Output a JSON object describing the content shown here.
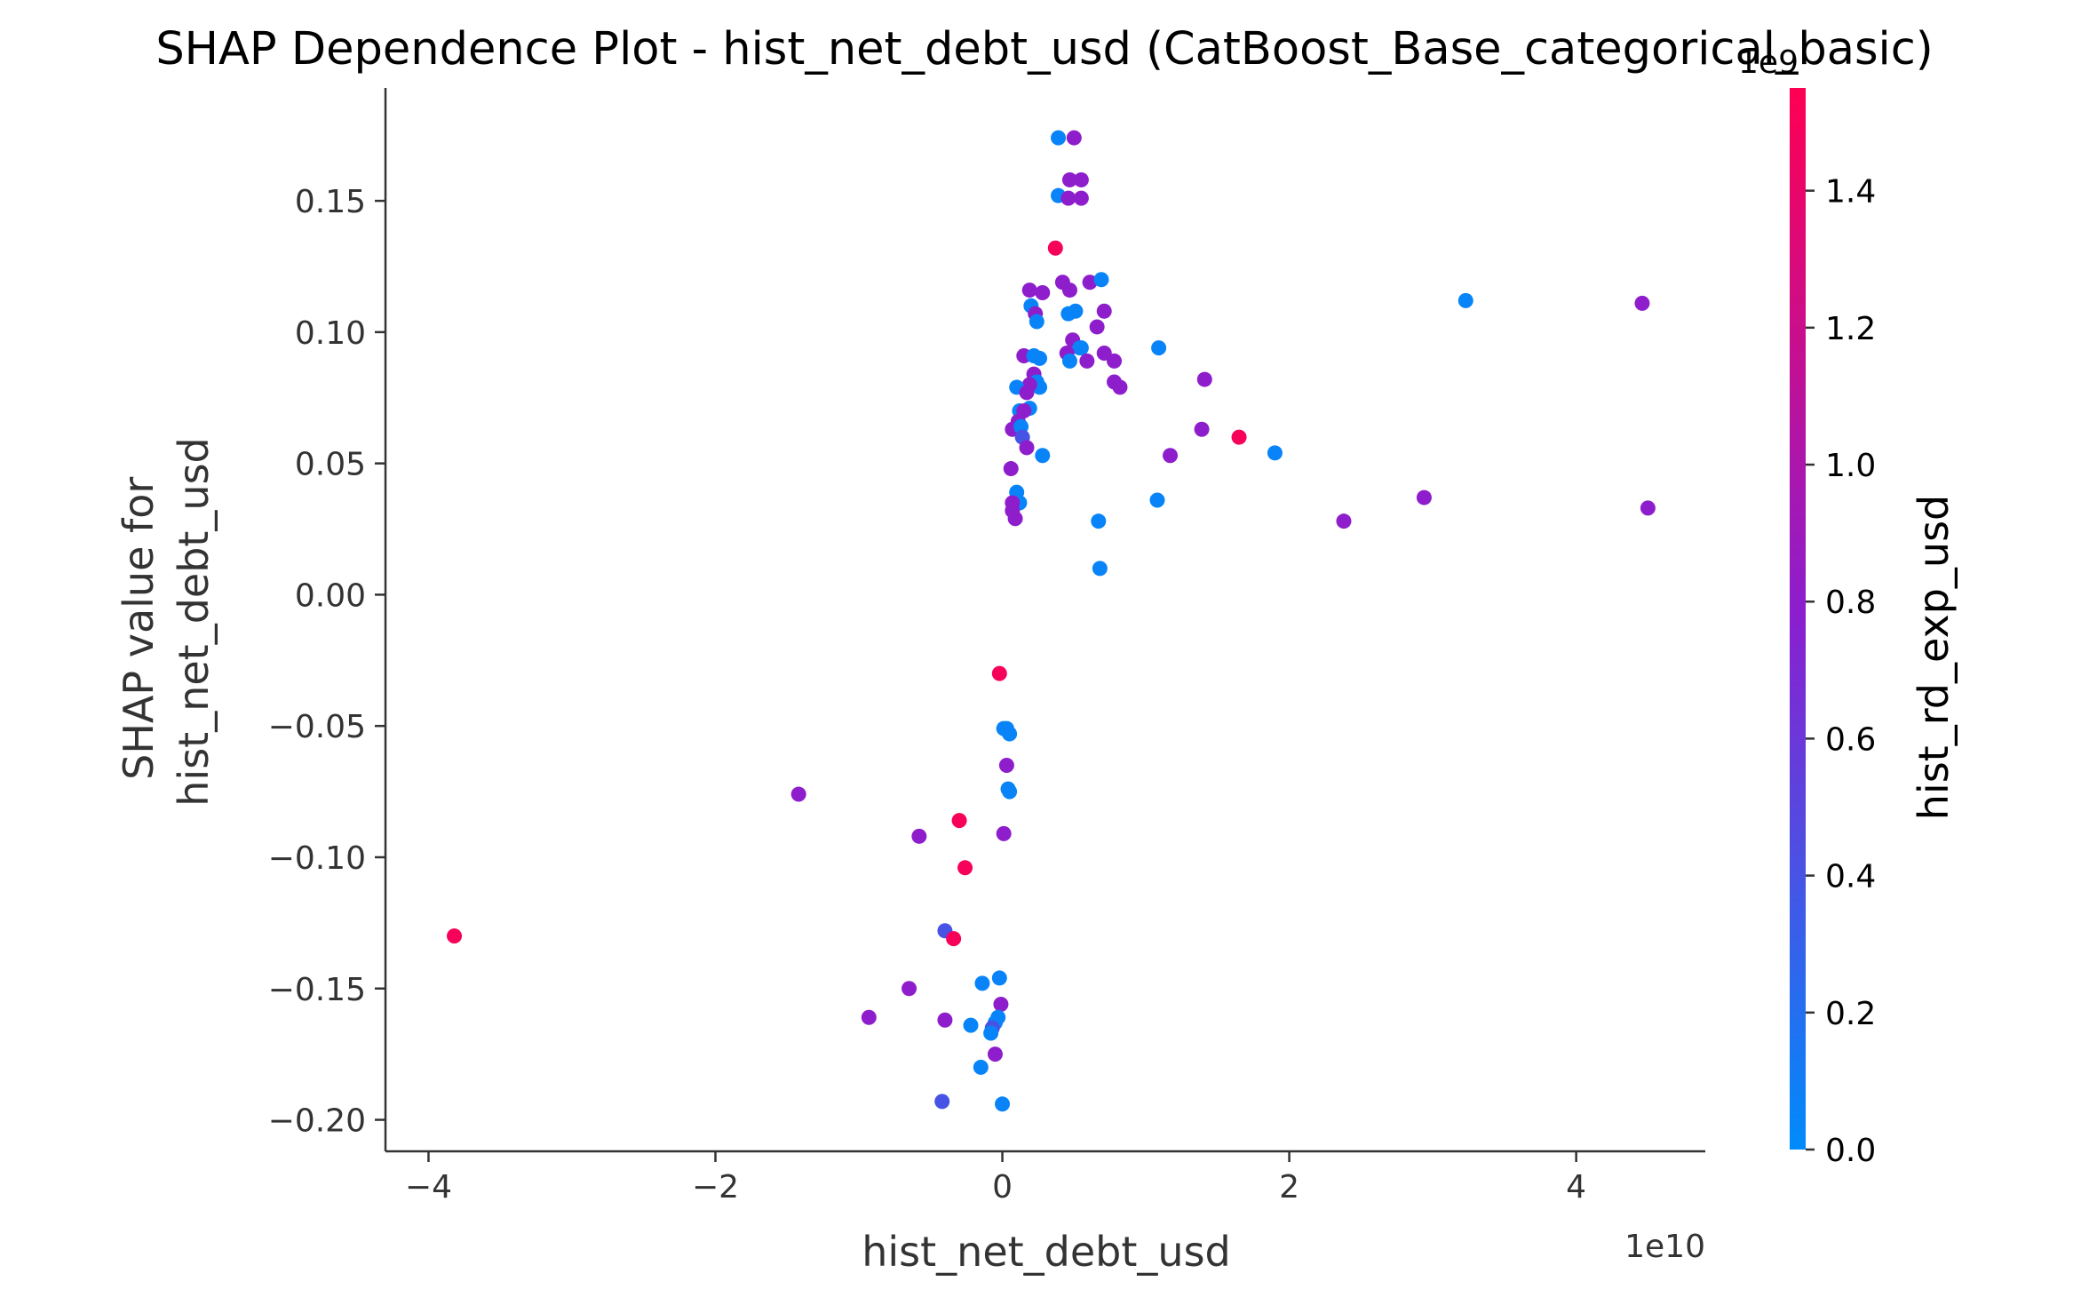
{
  "chart_data": {
    "type": "scatter",
    "title": "SHAP Dependence Plot - hist_net_debt_usd (CatBoost_Base_categorical_basic)",
    "xlabel": "hist_net_debt_usd",
    "ylabel_lines": [
      "SHAP value for",
      "hist_net_debt_usd"
    ],
    "x_offset_text": "1e10",
    "xlim": [
      -4.3,
      4.9
    ],
    "ylim": [
      -0.212,
      0.193
    ],
    "x_ticks": [
      -4,
      -2,
      0,
      2,
      4
    ],
    "x_tick_labels": [
      "−4",
      "−2",
      "0",
      "2",
      "4"
    ],
    "y_ticks": [
      -0.2,
      -0.15,
      -0.1,
      -0.05,
      0.0,
      0.05,
      0.1,
      0.15
    ],
    "y_tick_labels": [
      "−0.20",
      "−0.15",
      "−0.10",
      "−0.05",
      "0.00",
      "0.05",
      "0.10",
      "0.15"
    ],
    "colorbar": {
      "label": "hist_rd_exp_usd",
      "offset_text": "1e9",
      "range": [
        0,
        1.55
      ],
      "ticks": [
        0,
        0.2,
        0.4,
        0.6,
        0.8,
        1.0,
        1.2,
        1.4
      ],
      "tick_labels": [
        "0.0",
        "0.2",
        "0.4",
        "0.6",
        "0.8",
        "1.0",
        "1.2",
        "1.4"
      ],
      "colors": [
        "#008bfb",
        "#ff0052"
      ]
    },
    "points": [
      {
        "x": 0.39,
        "y": 0.174,
        "c": 0.05
      },
      {
        "x": 0.5,
        "y": 0.174,
        "c": 0.8
      },
      {
        "x": 0.47,
        "y": 0.158,
        "c": 0.8
      },
      {
        "x": 0.55,
        "y": 0.158,
        "c": 0.8
      },
      {
        "x": 0.39,
        "y": 0.152,
        "c": 0.05
      },
      {
        "x": 0.46,
        "y": 0.151,
        "c": 0.8
      },
      {
        "x": 0.55,
        "y": 0.151,
        "c": 0.8
      },
      {
        "x": 0.37,
        "y": 0.132,
        "c": 1.5
      },
      {
        "x": 0.42,
        "y": 0.119,
        "c": 0.8
      },
      {
        "x": 0.61,
        "y": 0.119,
        "c": 0.8
      },
      {
        "x": 0.69,
        "y": 0.12,
        "c": 0.05
      },
      {
        "x": 0.19,
        "y": 0.116,
        "c": 0.8
      },
      {
        "x": 0.28,
        "y": 0.115,
        "c": 0.8
      },
      {
        "x": 0.47,
        "y": 0.116,
        "c": 0.8
      },
      {
        "x": 0.2,
        "y": 0.11,
        "c": 0.05
      },
      {
        "x": 0.23,
        "y": 0.107,
        "c": 0.8
      },
      {
        "x": 0.46,
        "y": 0.107,
        "c": 0.05
      },
      {
        "x": 0.51,
        "y": 0.108,
        "c": 0.05
      },
      {
        "x": 0.71,
        "y": 0.108,
        "c": 0.8
      },
      {
        "x": 0.24,
        "y": 0.104,
        "c": 0.05
      },
      {
        "x": 0.66,
        "y": 0.102,
        "c": 0.8
      },
      {
        "x": 0.49,
        "y": 0.097,
        "c": 0.8
      },
      {
        "x": 0.54,
        "y": 0.094,
        "c": 0.05
      },
      {
        "x": 0.55,
        "y": 0.094,
        "c": 0.05
      },
      {
        "x": 0.15,
        "y": 0.091,
        "c": 0.8
      },
      {
        "x": 0.22,
        "y": 0.091,
        "c": 0.05
      },
      {
        "x": 0.26,
        "y": 0.09,
        "c": 0.05
      },
      {
        "x": 0.45,
        "y": 0.092,
        "c": 0.8
      },
      {
        "x": 0.47,
        "y": 0.089,
        "c": 0.05
      },
      {
        "x": 0.71,
        "y": 0.092,
        "c": 0.8
      },
      {
        "x": 0.78,
        "y": 0.089,
        "c": 0.8
      },
      {
        "x": 0.59,
        "y": 0.089,
        "c": 0.8
      },
      {
        "x": 1.09,
        "y": 0.094,
        "c": 0.05
      },
      {
        "x": 3.23,
        "y": 0.112,
        "c": 0.05
      },
      {
        "x": 4.46,
        "y": 0.111,
        "c": 0.8
      },
      {
        "x": 0.22,
        "y": 0.084,
        "c": 0.8
      },
      {
        "x": 0.24,
        "y": 0.081,
        "c": 0.05
      },
      {
        "x": 0.26,
        "y": 0.079,
        "c": 0.05
      },
      {
        "x": 0.19,
        "y": 0.08,
        "c": 0.8
      },
      {
        "x": 0.1,
        "y": 0.079,
        "c": 0.05
      },
      {
        "x": 0.17,
        "y": 0.077,
        "c": 0.8
      },
      {
        "x": 0.78,
        "y": 0.081,
        "c": 0.8
      },
      {
        "x": 0.82,
        "y": 0.079,
        "c": 0.8
      },
      {
        "x": 1.41,
        "y": 0.082,
        "c": 0.8
      },
      {
        "x": 0.12,
        "y": 0.07,
        "c": 0.05
      },
      {
        "x": 0.19,
        "y": 0.071,
        "c": 0.05
      },
      {
        "x": 0.15,
        "y": 0.07,
        "c": 0.8
      },
      {
        "x": 0.11,
        "y": 0.066,
        "c": 0.8
      },
      {
        "x": 0.07,
        "y": 0.063,
        "c": 0.8
      },
      {
        "x": 0.13,
        "y": 0.064,
        "c": 0.05
      },
      {
        "x": 0.14,
        "y": 0.06,
        "c": 0.4
      },
      {
        "x": 0.17,
        "y": 0.056,
        "c": 0.8
      },
      {
        "x": 0.28,
        "y": 0.053,
        "c": 0.05
      },
      {
        "x": 1.39,
        "y": 0.063,
        "c": 0.8
      },
      {
        "x": 1.17,
        "y": 0.053,
        "c": 0.8
      },
      {
        "x": 1.65,
        "y": 0.06,
        "c": 1.5
      },
      {
        "x": 1.9,
        "y": 0.054,
        "c": 0.05
      },
      {
        "x": 0.06,
        "y": 0.048,
        "c": 0.8
      },
      {
        "x": 0.1,
        "y": 0.039,
        "c": 0.05
      },
      {
        "x": 0.12,
        "y": 0.035,
        "c": 0.05
      },
      {
        "x": 0.07,
        "y": 0.035,
        "c": 0.8
      },
      {
        "x": 0.07,
        "y": 0.032,
        "c": 0.8
      },
      {
        "x": 0.09,
        "y": 0.029,
        "c": 0.8
      },
      {
        "x": 0.67,
        "y": 0.028,
        "c": 0.05
      },
      {
        "x": 1.08,
        "y": 0.036,
        "c": 0.05
      },
      {
        "x": 2.38,
        "y": 0.028,
        "c": 0.8
      },
      {
        "x": 2.94,
        "y": 0.037,
        "c": 0.8
      },
      {
        "x": 4.5,
        "y": 0.033,
        "c": 0.8
      },
      {
        "x": 0.68,
        "y": 0.01,
        "c": 0.05
      },
      {
        "x": -0.02,
        "y": -0.03,
        "c": 1.5
      },
      {
        "x": 0.01,
        "y": -0.051,
        "c": 0.05
      },
      {
        "x": 0.03,
        "y": -0.051,
        "c": 0.05
      },
      {
        "x": 0.05,
        "y": -0.053,
        "c": 0.05
      },
      {
        "x": 0.03,
        "y": -0.065,
        "c": 0.8
      },
      {
        "x": 0.04,
        "y": -0.074,
        "c": 0.05
      },
      {
        "x": 0.05,
        "y": -0.075,
        "c": 0.05
      },
      {
        "x": -1.42,
        "y": -0.076,
        "c": 0.8
      },
      {
        "x": -0.3,
        "y": -0.086,
        "c": 1.5
      },
      {
        "x": -0.58,
        "y": -0.092,
        "c": 0.8
      },
      {
        "x": 0.01,
        "y": -0.091,
        "c": 0.8
      },
      {
        "x": -0.26,
        "y": -0.104,
        "c": 1.5
      },
      {
        "x": -3.82,
        "y": -0.13,
        "c": 1.5
      },
      {
        "x": -0.4,
        "y": -0.128,
        "c": 0.4
      },
      {
        "x": -0.34,
        "y": -0.131,
        "c": 1.5
      },
      {
        "x": -0.65,
        "y": -0.15,
        "c": 0.8
      },
      {
        "x": -0.14,
        "y": -0.148,
        "c": 0.05
      },
      {
        "x": -0.02,
        "y": -0.146,
        "c": 0.05
      },
      {
        "x": -0.01,
        "y": -0.156,
        "c": 0.8
      },
      {
        "x": -0.03,
        "y": -0.161,
        "c": 0.05
      },
      {
        "x": -0.05,
        "y": -0.163,
        "c": 0.05
      },
      {
        "x": -0.07,
        "y": -0.165,
        "c": 0.4
      },
      {
        "x": -0.93,
        "y": -0.161,
        "c": 0.8
      },
      {
        "x": -0.4,
        "y": -0.162,
        "c": 0.8
      },
      {
        "x": -0.22,
        "y": -0.164,
        "c": 0.05
      },
      {
        "x": -0.08,
        "y": -0.167,
        "c": 0.05
      },
      {
        "x": -0.05,
        "y": -0.175,
        "c": 0.8
      },
      {
        "x": -0.15,
        "y": -0.18,
        "c": 0.05
      },
      {
        "x": -0.42,
        "y": -0.193,
        "c": 0.4
      },
      {
        "x": 0.0,
        "y": -0.194,
        "c": 0.05
      }
    ]
  }
}
